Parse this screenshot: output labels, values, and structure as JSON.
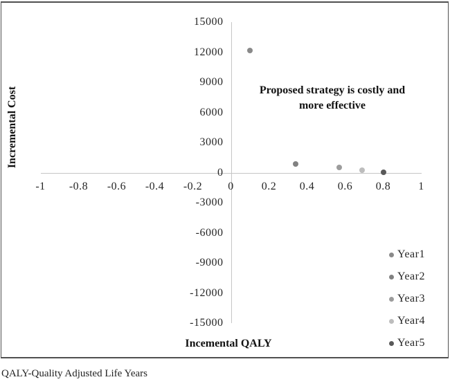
{
  "figure": {
    "footnote": "QALY-Quality Adjusted Life Years"
  },
  "chart_data": {
    "type": "scatter",
    "title": "",
    "xlabel": "Incemental QALY",
    "ylabel": "Incremental Cost",
    "annotation_lines": [
      "Proposed strategy is costly and",
      "more effective"
    ],
    "xlim": [
      -1,
      1
    ],
    "ylim": [
      -15000,
      15000
    ],
    "x_tick_labels": [
      "-1",
      "-0.8",
      "-0.6",
      "-0.4",
      "-0.2",
      "0",
      "0.2",
      "0.4",
      "0.6",
      "0.8",
      "1"
    ],
    "y_tick_labels": [
      "15000",
      "12000",
      "9000",
      "6000",
      "3000",
      "0",
      "-3000",
      "-6000",
      "-9000",
      "-12000",
      "-15000"
    ],
    "grid": false,
    "legend_position": "bottom-right",
    "axis_color": "#c6c6c6",
    "text_color": "#262626",
    "series": [
      {
        "name": "Year1",
        "color": "#8a8a8a",
        "points": [
          [
            0.1,
            12200
          ]
        ]
      },
      {
        "name": "Year2",
        "color": "#818181",
        "points": [
          [
            0.34,
            850
          ]
        ]
      },
      {
        "name": "Year3",
        "color": "#9c9c9c",
        "points": [
          [
            0.57,
            500
          ]
        ]
      },
      {
        "name": "Year4",
        "color": "#bdbdbd",
        "points": [
          [
            0.69,
            250
          ]
        ]
      },
      {
        "name": "Year5",
        "color": "#595959",
        "points": [
          [
            0.8,
            50
          ]
        ]
      }
    ]
  }
}
